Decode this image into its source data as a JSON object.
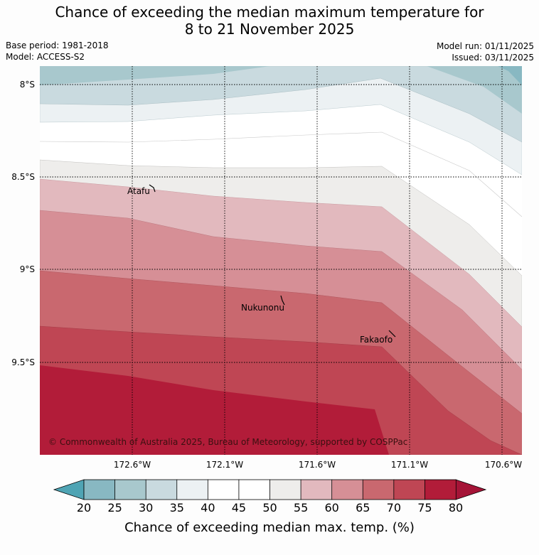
{
  "title_line1": "Chance of exceeding the median maximum temperature for",
  "title_line2": "8 to 21 November 2025",
  "base_period": "Base period: 1981-2018",
  "model": "Model: ACCESS-S2",
  "model_run": "Model run: 01/11/2025",
  "issued": "Issued: 03/11/2025",
  "latitude_labels": [
    "8°S",
    "8.5°S",
    "9°S",
    "9.5°S"
  ],
  "longitude_labels": [
    "172.6°W",
    "172.1°W",
    "171.6°W",
    "171.1°W",
    "170.6°W"
  ],
  "places": {
    "atafu": "Atafu",
    "nukunonu": "Nukunonu",
    "fakaofo": "Fakaofo"
  },
  "copyright": "© Commonwealth of Australia 2025, Bureau of Meteorology, supported by COSPPac",
  "colorbar": {
    "title": "Chance of exceeding median max. temp. (%)",
    "ticks": [
      "20",
      "25",
      "30",
      "35",
      "40",
      "45",
      "50",
      "55",
      "60",
      "65",
      "70",
      "75",
      "80"
    ],
    "colors": [
      "#67aeba",
      "#88b8c2",
      "#a8c8cd",
      "#c9dadf",
      "#ecf1f3",
      "#ffffff",
      "#ffffff",
      "#eeedeb",
      "#e2b9be",
      "#d68f96",
      "#c9686f",
      "#bf4654",
      "#b21c39"
    ]
  }
}
